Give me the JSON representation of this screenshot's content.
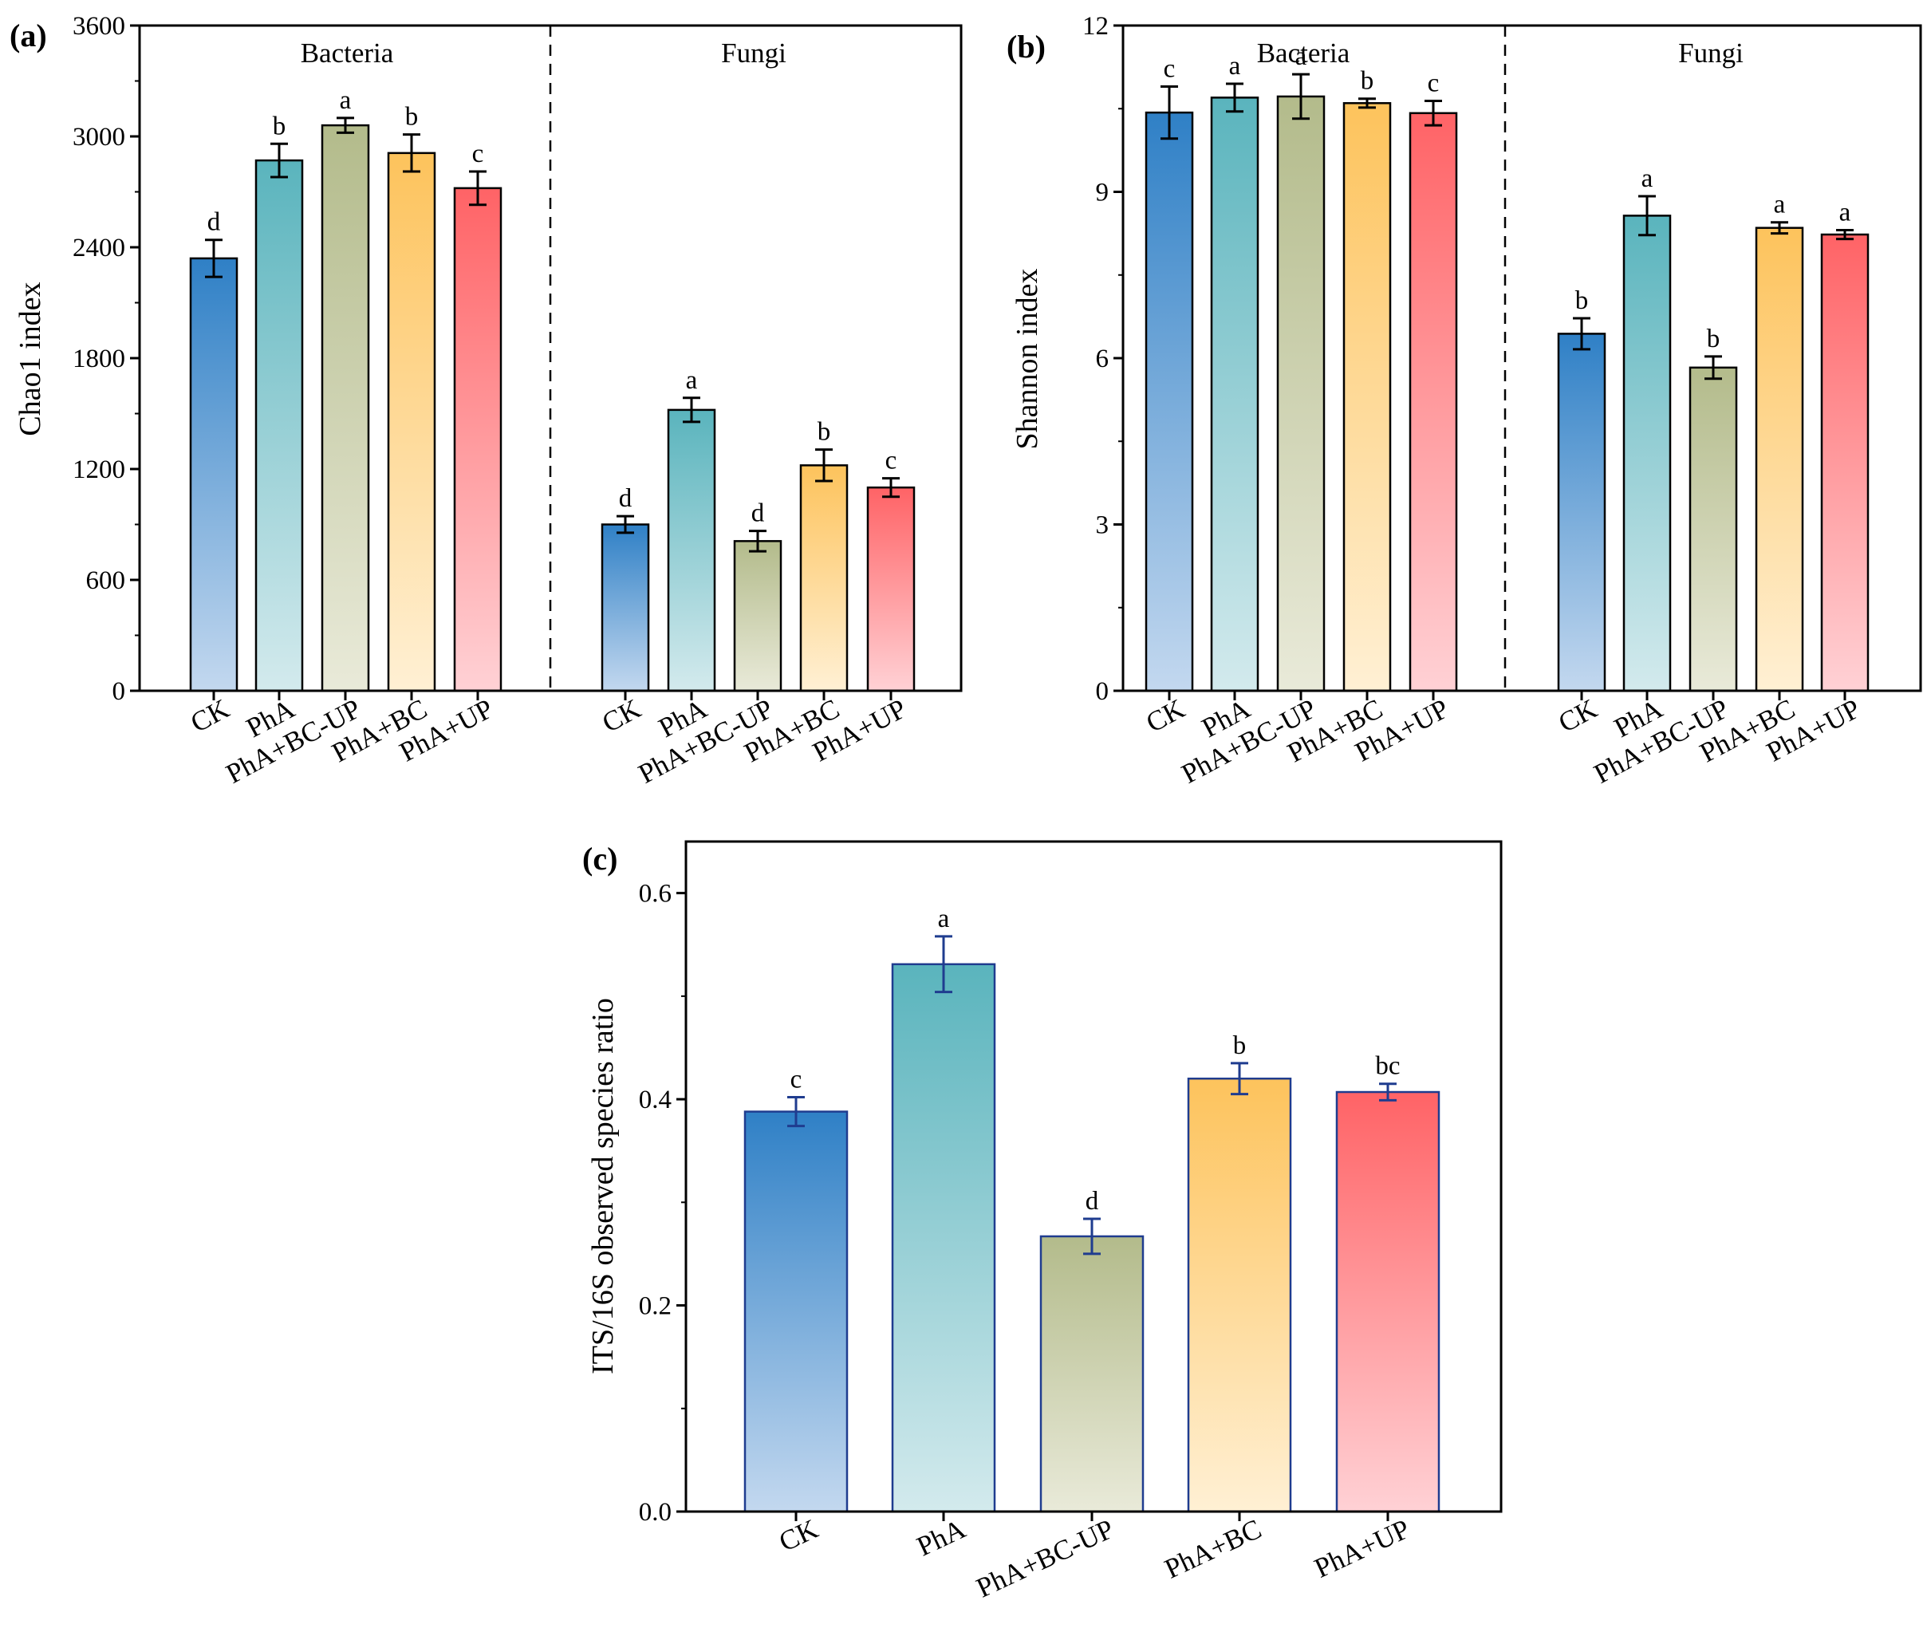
{
  "colors": {
    "CK": {
      "top": "#2f80c6",
      "bottom": "#c3d8ef"
    },
    "PhA": {
      "top": "#5ab4bd",
      "bottom": "#d3eaed"
    },
    "PhA+BC-UP": {
      "top": "#b3bb8b",
      "bottom": "#e9ead9"
    },
    "PhA+BC": {
      "top": "#fdc35c",
      "bottom": "#fff0d4"
    },
    "PhA+UP": {
      "top": "#ff6366",
      "bottom": "#ffd1d5"
    }
  },
  "chart_data": [
    {
      "panel": "(a)",
      "type": "bar",
      "ylabel": "Chao1 index",
      "ylim": [
        0,
        3600
      ],
      "yticks": [
        0,
        600,
        1200,
        1800,
        2400,
        3000,
        3600
      ],
      "groups": [
        {
          "name": "Bacteria",
          "categories": [
            "CK",
            "PhA",
            "PhA+BC-UP",
            "PhA+BC",
            "PhA+UP"
          ],
          "values": [
            2340,
            2870,
            3060,
            2910,
            2720
          ],
          "errors": [
            100,
            90,
            40,
            100,
            90
          ],
          "letters": [
            "d",
            "b",
            "a",
            "b",
            "c"
          ]
        },
        {
          "name": "Fungi",
          "categories": [
            "CK",
            "PhA",
            "PhA+BC-UP",
            "PhA+BC",
            "PhA+UP"
          ],
          "values": [
            900,
            1520,
            810,
            1220,
            1100
          ],
          "errors": [
            45,
            65,
            55,
            85,
            50
          ],
          "letters": [
            "d",
            "a",
            "d",
            "b",
            "c"
          ]
        }
      ]
    },
    {
      "panel": "(b)",
      "type": "bar",
      "ylabel": "Shannon index",
      "ylim": [
        0,
        12
      ],
      "yticks": [
        0,
        3,
        6,
        9,
        12
      ],
      "groups": [
        {
          "name": "Bacteria",
          "categories": [
            "CK",
            "PhA",
            "PhA+BC-UP",
            "PhA+BC",
            "PhA+UP"
          ],
          "values": [
            10.43,
            10.7,
            10.72,
            10.6,
            10.42
          ],
          "errors": [
            0.47,
            0.25,
            0.4,
            0.08,
            0.22
          ],
          "letters": [
            "c",
            "a",
            "a",
            "b",
            "c"
          ]
        },
        {
          "name": "Fungi",
          "categories": [
            "CK",
            "PhA",
            "PhA+BC-UP",
            "PhA+BC",
            "PhA+UP"
          ],
          "values": [
            6.44,
            8.57,
            5.83,
            8.35,
            8.23
          ],
          "errors": [
            0.28,
            0.35,
            0.2,
            0.1,
            0.08
          ],
          "letters": [
            "b",
            "a",
            "b",
            "a",
            "a"
          ]
        }
      ]
    },
    {
      "panel": "(c)",
      "type": "bar",
      "ylabel": "ITS/16S observed species ratio",
      "ylim": [
        0,
        0.65
      ],
      "yticks": [
        0.0,
        0.2,
        0.4,
        0.6
      ],
      "categories": [
        "CK",
        "PhA",
        "PhA+BC-UP",
        "PhA+BC",
        "PhA+UP"
      ],
      "values": [
        0.388,
        0.531,
        0.267,
        0.42,
        0.407
      ],
      "errors": [
        0.014,
        0.027,
        0.017,
        0.015,
        0.008
      ],
      "letters": [
        "c",
        "a",
        "d",
        "b",
        "bc"
      ]
    }
  ]
}
